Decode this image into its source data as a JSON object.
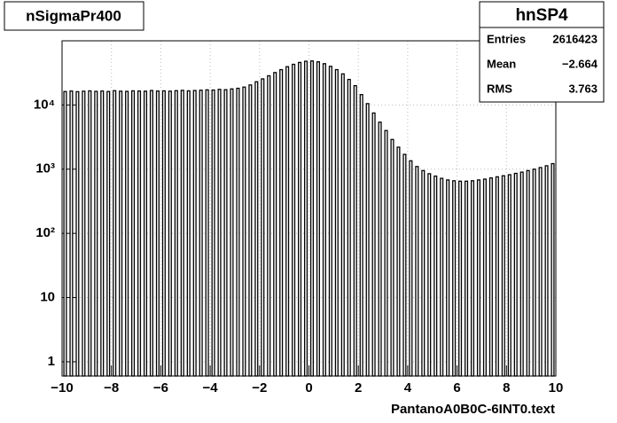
{
  "chart_data": {
    "type": "histogram",
    "title": "nSigmaPr400",
    "x_label": "PantanoA0B0C-6INT0.text",
    "bins": [
      -10,
      -9.75,
      -9.5,
      -9.25,
      -9,
      -8.75,
      -8.5,
      -8.25,
      -8,
      -7.75,
      -7.5,
      -7.25,
      -7,
      -6.75,
      -6.5,
      -6.25,
      -6,
      -5.75,
      -5.5,
      -5.25,
      -5,
      -4.75,
      -4.5,
      -4.25,
      -4,
      -3.75,
      -3.5,
      -3.25,
      -3,
      -2.75,
      -2.5,
      -2.25,
      -2,
      -1.75,
      -1.5,
      -1.25,
      -1,
      -0.75,
      -0.5,
      -0.25,
      0,
      0.25,
      0.5,
      0.75,
      1,
      1.25,
      1.5,
      1.75,
      2,
      2.25,
      2.5,
      2.75,
      3,
      3.25,
      3.5,
      3.75,
      4,
      4.25,
      4.5,
      4.75,
      5,
      5.25,
      5.5,
      5.75,
      6,
      6.25,
      6.5,
      6.75,
      7,
      7.25,
      7.5,
      7.75,
      8,
      8.25,
      8.5,
      8.75,
      9,
      9.25,
      9.5,
      9.75,
      10
    ],
    "values": [
      16200,
      16500,
      16100,
      16400,
      16600,
      16300,
      16500,
      16200,
      16700,
      16400,
      16300,
      16600,
      16500,
      16400,
      16800,
      16500,
      16600,
      16400,
      16700,
      16900,
      16600,
      16800,
      17000,
      17200,
      17100,
      17500,
      17300,
      17800,
      18200,
      19000,
      20500,
      23000,
      25500,
      28500,
      32000,
      35500,
      39500,
      43000,
      46000,
      48000,
      48500,
      47000,
      44000,
      40000,
      35500,
      30500,
      25000,
      20000,
      14500,
      10500,
      7500,
      5400,
      4000,
      2900,
      2200,
      1700,
      1350,
      1100,
      950,
      850,
      780,
      720,
      680,
      660,
      650,
      650,
      660,
      680,
      700,
      730,
      760,
      790,
      820,
      860,
      900,
      950,
      1000,
      1060,
      1130,
      1220
    ],
    "color": "#000000",
    "xlim": [
      -10,
      10
    ],
    "xticks": [
      {
        "value": -10,
        "label": "−10"
      },
      {
        "value": -8,
        "label": "−8"
      },
      {
        "value": -6,
        "label": "−6"
      },
      {
        "value": -4,
        "label": "−4"
      },
      {
        "value": -2,
        "label": "−2"
      },
      0,
      2,
      4,
      6,
      8,
      10
    ],
    "ylim": [
      0.6,
      100000
    ],
    "log_y": true,
    "yticks": [
      1,
      10,
      {
        "value": 100,
        "label": "10²"
      },
      {
        "value": 1000,
        "label": "10³"
      },
      {
        "value": 10000,
        "label": "10⁴"
      }
    ],
    "grid": true,
    "stats": {
      "title": "hnSP4",
      "rows": [
        [
          "Entries",
          "2616423"
        ],
        [
          "Mean",
          "−2.664"
        ],
        [
          "RMS",
          "3.763"
        ]
      ]
    }
  }
}
